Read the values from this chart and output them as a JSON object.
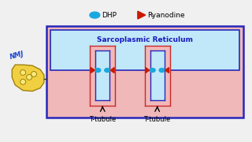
{
  "bg_color": "#f0f0f0",
  "pink_bg": "#f0b8b8",
  "blue_bg": "#c0e8f8",
  "blue_border": "#2828bb",
  "pink_border": "#cc2828",
  "sr_text": "Sarcoplasmic Reticulum",
  "sr_text_color": "#1818bb",
  "sr_text_fontsize": 6.5,
  "ttubule_text": "T-tubule",
  "ttubule_fontsize": 6,
  "dhp_color": "#18a8e0",
  "ryanodine_color": "#cc1800",
  "legend_dhp_text": "DHP",
  "legend_ryanodine_text": "Ryanodine",
  "legend_fontsize": 6.5,
  "nmj_color": "#1a44cc",
  "nerve_color": "#f0d040",
  "nerve_edge": "#a08010"
}
